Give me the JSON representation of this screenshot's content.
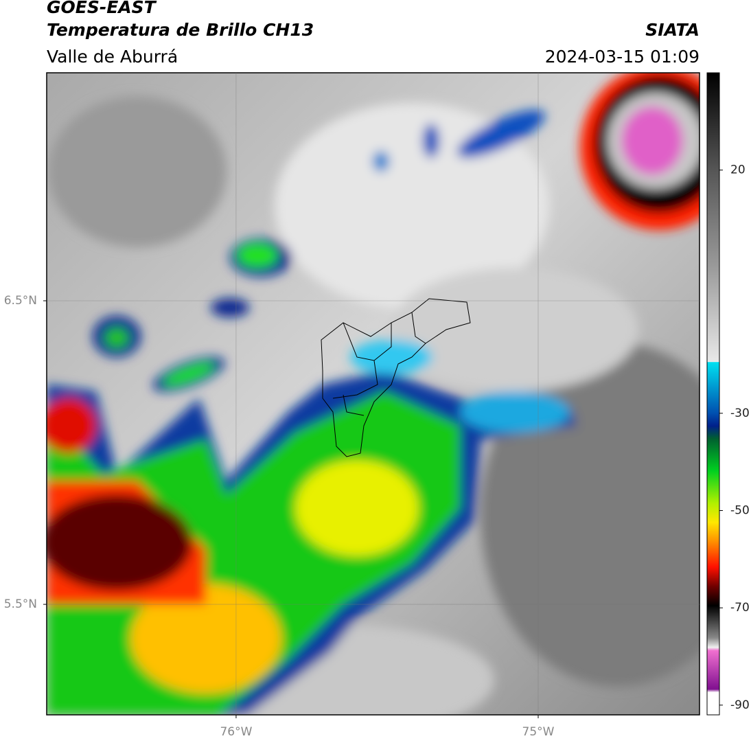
{
  "header": {
    "title": "GOES-EAST",
    "subtitle": "Temperatura de Brillo CH13",
    "region": "Valle de Aburrá",
    "source": "SIATA",
    "datetime": "2024-03-15 01:09"
  },
  "map": {
    "xlim": [
      -76.627,
      -74.466
    ],
    "ylim": [
      5.136,
      7.251
    ],
    "xticks": [
      {
        "value": -76,
        "label": "76°W"
      },
      {
        "value": -75,
        "label": "75°W"
      }
    ],
    "yticks": [
      {
        "value": 6.5,
        "label": "6.5°N"
      },
      {
        "value": 5.5,
        "label": "5.5°N"
      }
    ],
    "grid": true
  },
  "colorbar": {
    "lim": [
      -92,
      40
    ],
    "ticks": [
      20,
      -30,
      -50,
      -70,
      -90
    ]
  }
}
